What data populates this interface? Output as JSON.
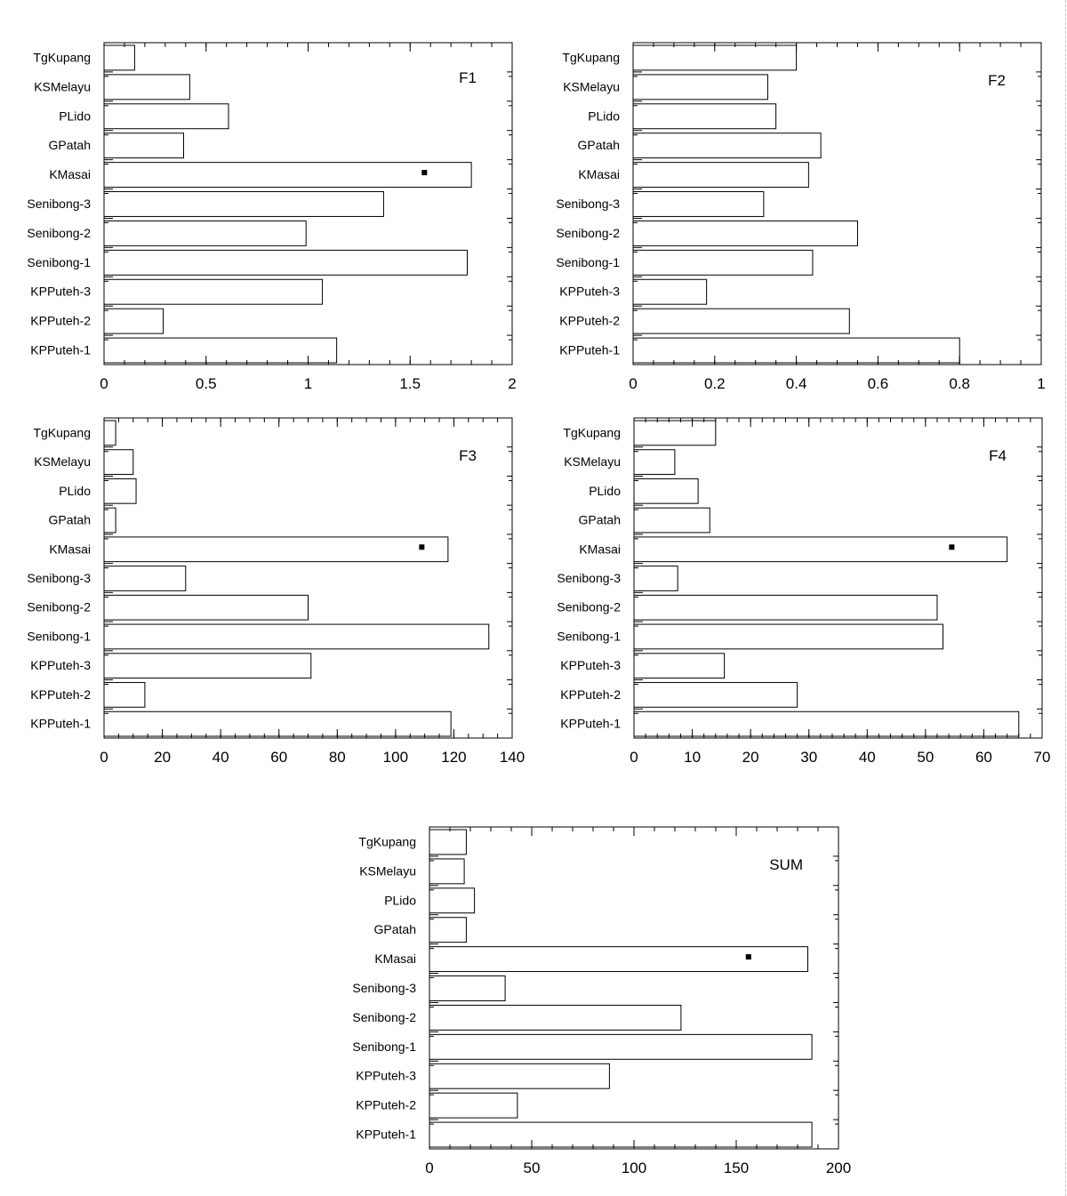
{
  "figure": {
    "categories": [
      "TgKupang",
      "KSMelayu",
      "PLido",
      "GPatah",
      "KMasai",
      "Senibong-3",
      "Senibong-2",
      "Senibong-1",
      "KPPuteh-3",
      "KPPuteh-2",
      "KPPuteh-1"
    ],
    "colors": {
      "bar_fill": "#ffffff",
      "bar_stroke": "#000000",
      "axis": "#000000",
      "marker": "#000000"
    }
  },
  "chart_data": [
    {
      "type": "bar",
      "orientation": "horizontal",
      "label": "F1",
      "categories": [
        "TgKupang",
        "KSMelayu",
        "PLido",
        "GPatah",
        "KMasai",
        "Senibong-3",
        "Senibong-2",
        "Senibong-1",
        "KPPuteh-3",
        "KPPuteh-2",
        "KPPuteh-1"
      ],
      "values": [
        0.15,
        0.42,
        0.61,
        0.39,
        1.8,
        1.37,
        0.99,
        1.78,
        1.07,
        0.29,
        1.14
      ],
      "xlim": [
        0,
        2
      ],
      "xticks": [
        0,
        0.5,
        1,
        1.5,
        2
      ],
      "xtick_labels": [
        "0",
        "0.5",
        "1",
        "1.5",
        "2"
      ],
      "minor_step": 0.1,
      "marker": {
        "category": "KMasai",
        "x": 1.57
      }
    },
    {
      "type": "bar",
      "orientation": "horizontal",
      "label": "F2",
      "categories": [
        "TgKupang",
        "KSMelayu",
        "PLido",
        "GPatah",
        "KMasai",
        "Senibong-3",
        "Senibong-2",
        "Senibong-1",
        "KPPuteh-3",
        "KPPuteh-2",
        "KPPuteh-1"
      ],
      "values": [
        0.4,
        0.33,
        0.35,
        0.46,
        0.43,
        0.32,
        0.55,
        0.44,
        0.18,
        0.53,
        0.8
      ],
      "xlim": [
        0,
        1
      ],
      "xticks": [
        0,
        0.2,
        0.4,
        0.6,
        0.8,
        1
      ],
      "xtick_labels": [
        "0",
        "0.2",
        "0.4",
        "0.6",
        "0.8",
        "1"
      ],
      "minor_step": 0.05
    },
    {
      "type": "bar",
      "orientation": "horizontal",
      "label": "F3",
      "categories": [
        "TgKupang",
        "KSMelayu",
        "PLido",
        "GPatah",
        "KMasai",
        "Senibong-3",
        "Senibong-2",
        "Senibong-1",
        "KPPuteh-3",
        "KPPuteh-2",
        "KPPuteh-1"
      ],
      "values": [
        4,
        10,
        11,
        4,
        118,
        28,
        70,
        132,
        71,
        14,
        119
      ],
      "xlim": [
        0,
        140
      ],
      "xticks": [
        0,
        20,
        40,
        60,
        80,
        100,
        120,
        140
      ],
      "xtick_labels": [
        "0",
        "20",
        "40",
        "60",
        "80",
        "100",
        "120",
        "140"
      ],
      "minor_step": 5,
      "marker": {
        "category": "KMasai",
        "x": 109
      }
    },
    {
      "type": "bar",
      "orientation": "horizontal",
      "label": "F4",
      "categories": [
        "TgKupang",
        "KSMelayu",
        "PLido",
        "GPatah",
        "KMasai",
        "Senibong-3",
        "Senibong-2",
        "Senibong-1",
        "KPPuteh-3",
        "KPPuteh-2",
        "KPPuteh-1"
      ],
      "values": [
        14,
        7,
        11,
        13,
        64,
        7.5,
        52,
        53,
        15.5,
        28,
        66
      ],
      "xlim": [
        0,
        70
      ],
      "xticks": [
        0,
        10,
        20,
        30,
        40,
        50,
        60,
        70
      ],
      "xtick_labels": [
        "0",
        "10",
        "20",
        "30",
        "40",
        "50",
        "60",
        "70"
      ],
      "minor_step": 2,
      "marker": {
        "category": "KMasai",
        "x": 54.5
      }
    },
    {
      "type": "bar",
      "orientation": "horizontal",
      "label": "SUM",
      "categories": [
        "TgKupang",
        "KSMelayu",
        "PLido",
        "GPatah",
        "KMasai",
        "Senibong-3",
        "Senibong-2",
        "Senibong-1",
        "KPPuteh-3",
        "KPPuteh-2",
        "KPPuteh-1"
      ],
      "values": [
        18,
        17,
        22,
        18,
        185,
        37,
        123,
        187,
        88,
        43,
        187
      ],
      "xlim": [
        0,
        200
      ],
      "xticks": [
        0,
        50,
        100,
        150,
        200
      ],
      "xtick_labels": [
        "0",
        "50",
        "100",
        "150",
        "200"
      ],
      "minor_step": 10,
      "marker": {
        "category": "KMasai",
        "x": 156
      }
    }
  ]
}
